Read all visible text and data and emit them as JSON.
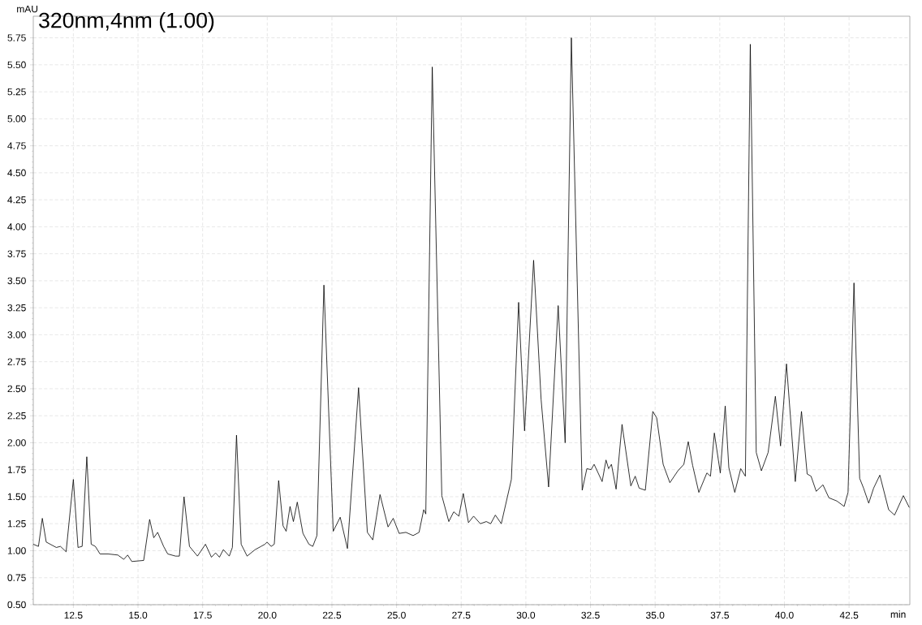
{
  "chart_data": {
    "type": "line",
    "title": "320nm,4nm (1.00)",
    "xlabel": "min",
    "ylabel": "mAU",
    "xlim": [
      10.95,
      44.85
    ],
    "ylim": [
      0.5,
      5.95
    ],
    "xticks": [
      12.5,
      {
        "value": 15,
        "label": "15.0"
      },
      17.5,
      {
        "value": 20,
        "label": "20.0"
      },
      22.5,
      {
        "value": 25,
        "label": "25.0"
      },
      27.5,
      {
        "value": 30,
        "label": "30.0"
      },
      32.5,
      {
        "value": 35,
        "label": "35.0"
      },
      37.5,
      {
        "value": 40,
        "label": "40.0"
      },
      42.5
    ],
    "yticks": [
      {
        "value": 0.5,
        "label": "0.50"
      },
      0.75,
      {
        "value": 1,
        "label": "1.00"
      },
      1.25,
      {
        "value": 1.5,
        "label": "1.50"
      },
      1.75,
      {
        "value": 2,
        "label": "2.00"
      },
      2.25,
      {
        "value": 2.5,
        "label": "2.50"
      },
      2.75,
      {
        "value": 3,
        "label": "3.00"
      },
      3.25,
      {
        "value": 3.5,
        "label": "3.50"
      },
      3.75,
      {
        "value": 4,
        "label": "4.00"
      },
      4.25,
      {
        "value": 4.5,
        "label": "4.50"
      },
      4.75,
      {
        "value": 5,
        "label": "5.00"
      },
      5.25,
      {
        "value": 5.5,
        "label": "5.50"
      },
      5.75
    ],
    "grid": true,
    "marker": "none",
    "line_style": "solid",
    "series": [
      {
        "color": "#000000",
        "x": [
          10.95,
          11.15,
          11.3,
          11.45,
          11.84,
          12.0,
          12.22,
          12.5,
          12.68,
          12.84,
          13.02,
          13.19,
          13.35,
          13.53,
          13.84,
          14.22,
          14.45,
          14.6,
          14.76,
          15.22,
          15.45,
          15.61,
          15.76,
          15.99,
          16.15,
          16.45,
          16.6,
          16.78,
          16.99,
          17.3,
          17.61,
          17.84,
          18.0,
          18.15,
          18.3,
          18.53,
          18.65,
          18.81,
          18.99,
          19.22,
          19.53,
          19.76,
          19.91,
          19.99,
          20.15,
          20.27,
          20.44,
          20.61,
          20.73,
          20.88,
          21.01,
          21.16,
          21.38,
          21.61,
          21.76,
          21.92,
          22.19,
          22.55,
          22.82,
          23.1,
          23.53,
          23.87,
          24.08,
          24.36,
          24.67,
          24.87,
          25.1,
          25.36,
          25.64,
          25.87,
          26.05,
          26.13,
          26.38,
          26.75,
          27.02,
          27.21,
          27.41,
          27.58,
          27.78,
          27.98,
          28.24,
          28.47,
          28.64,
          28.82,
          29.05,
          29.44,
          29.72,
          29.95,
          30.3,
          30.59,
          30.88,
          31.25,
          31.52,
          31.76,
          32.18,
          32.36,
          32.52,
          32.64,
          32.95,
          33.1,
          33.2,
          33.31,
          33.49,
          33.72,
          34.06,
          34.23,
          34.38,
          34.62,
          34.91,
          35.06,
          35.31,
          35.57,
          35.88,
          36.11,
          36.28,
          36.45,
          36.69,
          37.0,
          37.14,
          37.29,
          37.52,
          37.71,
          37.85,
          38.08,
          38.31,
          38.49,
          38.68,
          38.91,
          39.11,
          39.37,
          39.65,
          39.85,
          40.08,
          40.42,
          40.66,
          40.88,
          41.03,
          41.23,
          41.49,
          41.72,
          42.03,
          42.31,
          42.46,
          42.69,
          42.91,
          43.06,
          43.26,
          43.45,
          43.69,
          44.03,
          44.26,
          44.6,
          44.83
        ],
        "values": [
          1.06,
          1.04,
          1.3,
          1.08,
          1.03,
          1.04,
          0.99,
          1.66,
          1.03,
          1.04,
          1.87,
          1.06,
          1.04,
          0.97,
          0.97,
          0.96,
          0.92,
          0.96,
          0.9,
          0.91,
          1.29,
          1.12,
          1.17,
          1.04,
          0.97,
          0.95,
          0.95,
          1.5,
          1.04,
          0.95,
          1.06,
          0.94,
          0.98,
          0.94,
          1.01,
          0.95,
          1.03,
          2.07,
          1.06,
          0.95,
          1.01,
          1.04,
          1.06,
          1.08,
          1.04,
          1.06,
          1.65,
          1.23,
          1.18,
          1.41,
          1.27,
          1.45,
          1.16,
          1.06,
          1.04,
          1.14,
          3.46,
          1.18,
          1.31,
          1.02,
          2.51,
          1.17,
          1.1,
          1.52,
          1.22,
          1.3,
          1.16,
          1.17,
          1.14,
          1.17,
          1.38,
          1.34,
          5.48,
          1.51,
          1.27,
          1.36,
          1.32,
          1.53,
          1.26,
          1.32,
          1.25,
          1.27,
          1.25,
          1.33,
          1.25,
          1.66,
          3.3,
          2.11,
          3.69,
          2.4,
          1.59,
          3.27,
          2.0,
          5.75,
          1.56,
          1.76,
          1.75,
          1.8,
          1.64,
          1.84,
          1.76,
          1.8,
          1.57,
          2.17,
          1.6,
          1.69,
          1.58,
          1.56,
          2.29,
          2.23,
          1.8,
          1.63,
          1.74,
          1.8,
          2.01,
          1.79,
          1.54,
          1.72,
          1.69,
          2.09,
          1.72,
          2.34,
          1.77,
          1.54,
          1.76,
          1.69,
          5.69,
          1.91,
          1.74,
          1.91,
          2.43,
          1.97,
          2.73,
          1.64,
          2.29,
          1.71,
          1.69,
          1.55,
          1.61,
          1.49,
          1.46,
          1.41,
          1.54,
          3.48,
          1.67,
          1.58,
          1.44,
          1.58,
          1.7,
          1.38,
          1.33,
          1.51,
          1.4
        ]
      }
    ]
  }
}
